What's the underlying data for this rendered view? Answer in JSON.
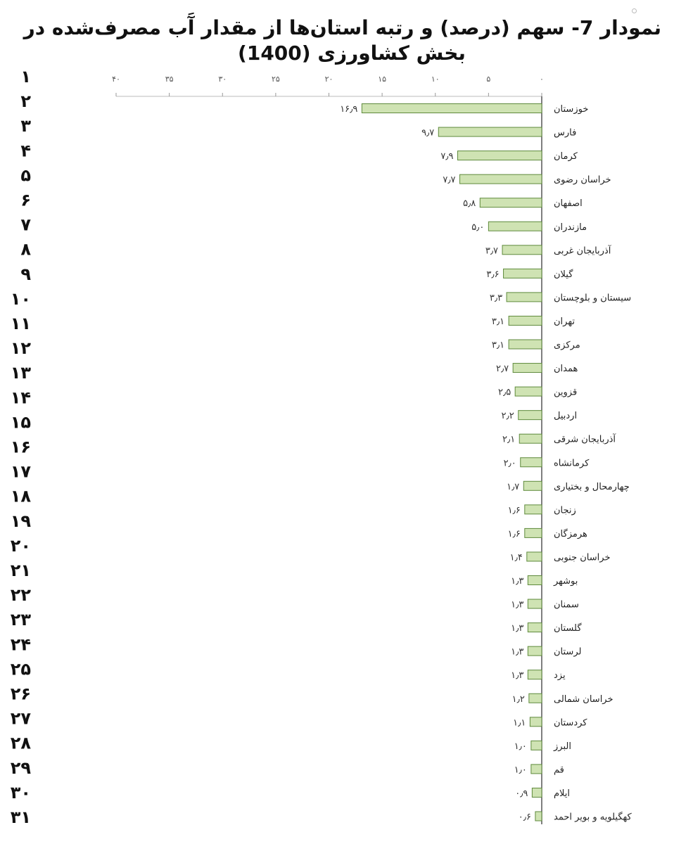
{
  "chart_data": {
    "type": "bar",
    "orientation": "horizontal",
    "title": "نمودار 7- سهم (درصد) و رتبه استان‌ها از مقدار آب مصرف‌شده در بخش کشاورزی (1400)",
    "title_lines": [
      "نمودار 7- سهم (درصد) و رتبه استان‌ها از مقدار آَب مصرف‌شده در",
      "بخش کشاورزی (1400)"
    ],
    "xlabel": "",
    "ylabel": "",
    "xlim": [
      0,
      40
    ],
    "x_ticks": [
      0,
      5,
      10,
      15,
      20,
      25,
      30,
      35,
      40
    ],
    "x_tick_labels": [
      "۰",
      "۵",
      "۱۰",
      "۱۵",
      "۲۰",
      "۲۵",
      "۳۰",
      "۳۵",
      "۴۰"
    ],
    "axis_direction": "right-to-left",
    "categories": [
      "خوزستان",
      "فارس",
      "کرمان",
      "خراسان رضوی",
      "اصفهان",
      "مازندران",
      "آذربایجان غربی",
      "گیلان",
      "سیستان و بلوچستان",
      "تهران",
      "مرکزی",
      "همدان",
      "قزوین",
      "اردبیل",
      "آذربایجان شرقی",
      "کرمانشاه",
      "چهارمحال و بختیاری",
      "زنجان",
      "هرمزگان",
      "خراسان جنوبی",
      "بوشهر",
      "سمنان",
      "گلستان",
      "لرستان",
      "یزد",
      "خراسان شمالی",
      "کردستان",
      "البرز",
      "قم",
      "ایلام",
      "کهگیلویه و بویر احمد"
    ],
    "values": [
      16.9,
      9.7,
      7.9,
      7.7,
      5.8,
      5.0,
      3.7,
      3.6,
      3.3,
      3.1,
      3.1,
      2.7,
      2.5,
      2.2,
      2.1,
      2.0,
      1.7,
      1.6,
      1.6,
      1.4,
      1.3,
      1.3,
      1.3,
      1.3,
      1.3,
      1.2,
      1.1,
      1.0,
      1.0,
      0.9,
      0.6
    ],
    "value_labels": [
      "۱۶٫۹",
      "۹٫۷",
      "۷٫۹",
      "۷٫۷",
      "۵٫۸",
      "۵٫۰",
      "۳٫۷",
      "۳٫۶",
      "۳٫۳",
      "۳٫۱",
      "۳٫۱",
      "۲٫۷",
      "۲٫۵",
      "۲٫۲",
      "۲٫۱",
      "۲٫۰",
      "۱٫۷",
      "۱٫۶",
      "۱٫۶",
      "۱٫۴",
      "۱٫۳",
      "۱٫۳",
      "۱٫۳",
      "۱٫۳",
      "۱٫۳",
      "۱٫۲",
      "۱٫۱",
      "۱٫۰",
      "۱٫۰",
      "۰٫۹",
      "۰٫۶"
    ],
    "ranks": [
      "۱",
      "۲",
      "۳",
      "۴",
      "۵",
      "۶",
      "۷",
      "۸",
      "۹",
      "۱۰",
      "۱۱",
      "۱۲",
      "۱۳",
      "۱۴",
      "۱۵",
      "۱۶",
      "۱۷",
      "۱۸",
      "۱۹",
      "۲۰",
      "۲۱",
      "۲۲",
      "۲۳",
      "۲۴",
      "۲۵",
      "۲۶",
      "۲۷",
      "۲۸",
      "۲۹",
      "۳۰",
      "۳۱"
    ],
    "grid": false,
    "legend": "none",
    "colors": {
      "bar_fill": "#cfe3b3",
      "bar_stroke": "#5f8a3c",
      "axis": "#555555"
    }
  }
}
